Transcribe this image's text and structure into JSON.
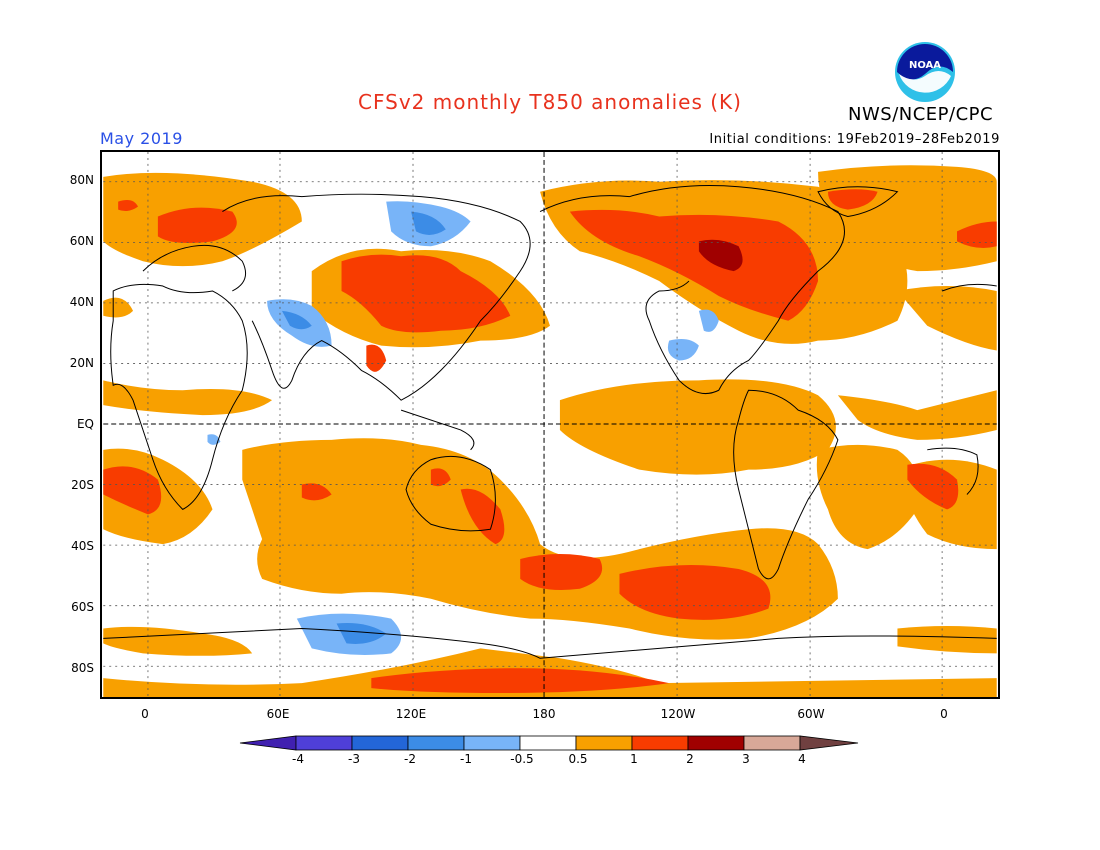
{
  "title": "CFSv2 monthly T850 anomalies (K)",
  "agency": "NWS/NCEP/CPC",
  "logo_text": "NOAA",
  "month": "May 2019",
  "initial_conditions": "Initial conditions: 19Feb2019–28Feb2019",
  "map": {
    "lat_labels": [
      "80N",
      "60N",
      "40N",
      "20N",
      "EQ",
      "20S",
      "40S",
      "60S",
      "80S"
    ],
    "lon_labels": [
      "0",
      "60E",
      "120E",
      "180",
      "120W",
      "60W",
      "0"
    ],
    "colors": {
      "warm_1": "#f8a000",
      "warm_2": "#f83c00",
      "warm_3": "#a00000",
      "cool_1": "#78b4f8",
      "cool_2": "#3c8ce6"
    }
  },
  "colorbar": {
    "labels": [
      "-4",
      "-3",
      "-2",
      "-1",
      "-0.5",
      "0.5",
      "1",
      "2",
      "3",
      "4"
    ],
    "colors": [
      "#4020b0",
      "#4f3fd8",
      "#2366d8",
      "#3c8ce6",
      "#78b4f8",
      "#ffffff",
      "#f8a000",
      "#f83c00",
      "#a00000",
      "#d8a898",
      "#704040"
    ]
  }
}
